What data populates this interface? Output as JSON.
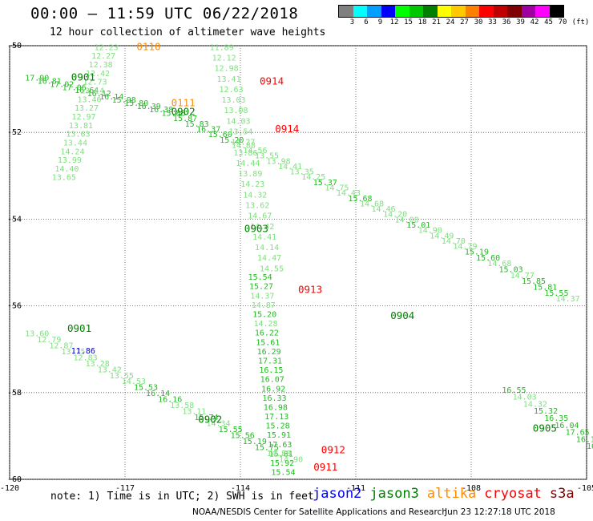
{
  "header": {
    "title": "00:00 — 11:59 UTC 06/22/2018",
    "subtitle": "12 hour collection of altimeter wave heights"
  },
  "legend": {
    "colors": [
      "#808080",
      "#00ffff",
      "#00a0ff",
      "#0000ff",
      "#00ff00",
      "#00c800",
      "#008000",
      "#ffff00",
      "#ffc800",
      "#ff8000",
      "#ff0000",
      "#c00000",
      "#800000",
      "#a000a0",
      "#ff00ff",
      "#000000"
    ],
    "ticks": [
      "3",
      "6",
      "9",
      "12",
      "15",
      "18",
      "21",
      "24",
      "27",
      "30",
      "33",
      "36",
      "39",
      "42",
      "45",
      "70",
      "(ft)"
    ]
  },
  "map": {
    "lon_range": [
      -120,
      -105
    ],
    "lat_range": [
      -60,
      -50
    ],
    "lon_ticks": [
      "-120",
      "-117",
      "-114",
      "-111",
      "-108",
      "-105"
    ],
    "lat_ticks": [
      "-50",
      "-52",
      "-54",
      "-56",
      "-58",
      "-60"
    ]
  },
  "passes": [
    {
      "sat": "jason3",
      "points": [
        [
          -119.6,
          -50.8
        ],
        [
          -116.1,
          -51.6
        ],
        [
          -111.4,
          -53.5
        ],
        [
          -108.2,
          -54.8
        ],
        [
          -105.8,
          -55.9
        ]
      ],
      "labels": [
        "17.90",
        "16.81",
        "17.02",
        "17.06",
        "16.64",
        "16.12",
        "16.14",
        "15.98",
        "15.80",
        "16.39",
        "16.38",
        "15.88",
        "15.87",
        "15.83",
        "16.37",
        "15.60",
        "15.20",
        "14.88",
        "14.56",
        "13.55",
        "13.98",
        "14.41",
        "13.35",
        "14.25",
        "15.37",
        "14.75",
        "14.43",
        "15.68",
        "14.68",
        "14.46",
        "14.20",
        "14.08",
        "15.01",
        "14.90",
        "14.49",
        "14.70",
        "14.79",
        "15.19",
        "15.60",
        "14.68",
        "15.03",
        "14.77",
        "15.85",
        "15.81",
        "15.55",
        "14.37"
      ]
    },
    {
      "sat": "jason3",
      "points": [
        [
          -117.8,
          -50.1
        ],
        [
          -118.9,
          -53.1
        ]
      ],
      "labels": [
        "12.23",
        "12.27",
        "12.38",
        "12.42",
        "12.73",
        "13.14",
        "13.46",
        "13.27",
        "12.97",
        "13.81",
        "13.63",
        "13.44",
        "14.24",
        "13.99",
        "14.40",
        "13.65"
      ]
    },
    {
      "sat": "jason3",
      "points": [
        [
          -114.8,
          -50.1
        ],
        [
          -113.5,
          -55.2
        ]
      ],
      "labels": [
        "11.89",
        "12.12",
        "12.98",
        "13.41",
        "12.63",
        "13.03",
        "13.08",
        "14.03",
        "13.54",
        "14.27",
        "13.86",
        "14.44",
        "13.89",
        "14.23",
        "14.32",
        "13.62",
        "14.67",
        "14.42",
        "14.41",
        "14.14",
        "14.47",
        "14.55"
      ]
    },
    {
      "sat": "jason3",
      "points": [
        [
          -113.8,
          -55.4
        ],
        [
          -113.2,
          -59.9
        ]
      ],
      "labels": [
        "15.54",
        "15.27",
        "14.37",
        "14.87",
        "15.20",
        "14.28",
        "16.22",
        "15.61",
        "16.29",
        "17.31",
        "16.15",
        "16.07",
        "16.92",
        "16.33",
        "16.98",
        "17.13",
        "15.28",
        "15.91",
        "17.63",
        "15.81",
        "15.92",
        "15.54"
      ]
    },
    {
      "sat": "jason3",
      "points": [
        [
          -119.6,
          -56.7
        ],
        [
          -113.0,
          -59.6
        ]
      ],
      "labels": [
        "13.60",
        "12.79",
        "12.87",
        "13.75",
        "12.83",
        "13.28",
        "13.42",
        "13.55",
        "14.53",
        "15.53",
        "16.14",
        "16.16",
        "13.58",
        "13.11",
        "15.74",
        "14.34",
        "15.55",
        "15.56",
        "15.19",
        "15.75",
        "14.88",
        "14.90"
      ]
    },
    {
      "sat": "jason3",
      "points": [
        [
          -107.2,
          -58.0
        ],
        [
          -105.0,
          -59.3
        ]
      ],
      "labels": [
        "16.55",
        "14.03",
        "14.32",
        "15.32",
        "16.35",
        "16.04",
        "17.65",
        "16.14",
        "16.3"
      ]
    }
  ],
  "pass_labels": [
    {
      "text": "0110",
      "color": "#ff8c00",
      "lon": -116.7,
      "lat": -50.1
    },
    {
      "text": "0901",
      "color": "#008000",
      "lon": -118.4,
      "lat": -50.8
    },
    {
      "text": "0111",
      "color": "#ff8c00",
      "lon": -115.8,
      "lat": -51.4
    },
    {
      "text": "0902",
      "color": "#008000",
      "lon": -115.8,
      "lat": -51.6
    },
    {
      "text": "0914",
      "color": "#ff0000",
      "lon": -113.5,
      "lat": -50.9
    },
    {
      "text": "0914",
      "color": "#ff0000",
      "lon": -113.1,
      "lat": -52.0
    },
    {
      "text": "0903",
      "color": "#008000",
      "lon": -113.9,
      "lat": -54.3
    },
    {
      "text": "0913",
      "color": "#ff0000",
      "lon": -112.5,
      "lat": -55.7
    },
    {
      "text": "0904",
      "color": "#008000",
      "lon": -110.1,
      "lat": -56.3
    },
    {
      "text": "0901",
      "color": "#008000",
      "lon": -118.5,
      "lat": -56.6
    },
    {
      "text": "0902",
      "color": "#008000",
      "lon": -115.1,
      "lat": -58.7
    },
    {
      "text": "0905",
      "color": "#008000",
      "lon": -106.4,
      "lat": -58.9
    },
    {
      "text": "0912",
      "color": "#ff0000",
      "lon": -111.9,
      "lat": -59.4
    },
    {
      "text": "0911",
      "color": "#ff0000",
      "lon": -112.1,
      "lat": -59.8
    }
  ],
  "special_labels": [
    {
      "text": "11.86",
      "color": "#0000c8",
      "lon": -118.4,
      "lat": -57.1
    }
  ],
  "note": "note: 1) Time is in UTC; 2) SWH is in feet",
  "satellites": [
    {
      "name": "jason2",
      "color": "#0000ff"
    },
    {
      "name": "jason3",
      "color": "#008000"
    },
    {
      "name": "altika",
      "color": "#ff8c00"
    },
    {
      "name": "cryosat",
      "color": "#ff0000"
    },
    {
      "name": "s3a",
      "color": "#800000"
    }
  ],
  "footer": {
    "credit": "NOAA/NESDIS Center for Satellite Applications and Research",
    "timestamp": "Jun 23 12:27:18 UTC 2018"
  }
}
